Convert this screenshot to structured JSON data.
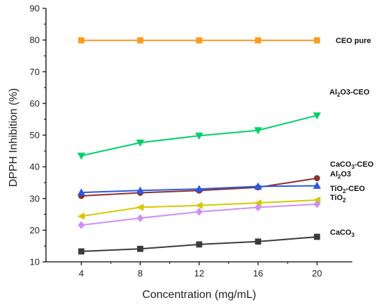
{
  "chart_data": {
    "type": "line",
    "xlabel": "Concentration (mg/mL)",
    "ylabel": "DPPH Inhibition (%)",
    "x": [
      4,
      8,
      12,
      16,
      20
    ],
    "xlim": [
      1.6,
      22.4
    ],
    "ylim": [
      10,
      90
    ],
    "yticks": [
      10,
      20,
      30,
      40,
      50,
      60,
      70,
      80,
      90
    ],
    "grid": false,
    "legend": "none",
    "series": [
      {
        "name": "CEO pure",
        "label_main": "CEO pure",
        "label_sub": "",
        "label_tail": "",
        "color": "#ff9a1f",
        "marker": "square",
        "values": [
          79.9,
          79.9,
          79.9,
          79.9,
          79.9
        ]
      },
      {
        "name": "Al2O3-CEO",
        "label_main": "Al",
        "label_sub": "2",
        "label_tail": "O3-CEO",
        "color": "#00d068",
        "marker": "triangle-down",
        "values": [
          43.5,
          47.6,
          49.8,
          51.5,
          56.2
        ]
      },
      {
        "name": "CaCO3-CEO",
        "label_main": "CaCO",
        "label_sub": "3",
        "label_tail": "-CEO",
        "color": "#8b2f2f",
        "marker": "circle",
        "values": [
          30.8,
          31.8,
          32.5,
          33.5,
          36.4
        ]
      },
      {
        "name": "Al2O3",
        "label_main": "Al",
        "label_sub": "2",
        "label_tail": "O3",
        "color": "#2d57e0",
        "marker": "triangle-up",
        "values": [
          31.9,
          32.5,
          33.0,
          33.8,
          34.0
        ]
      },
      {
        "name": "TiO2-CEO",
        "label_main": "TiO",
        "label_sub": "2",
        "label_tail": "-CEO",
        "color": "#d6c800",
        "marker": "triangle-left",
        "values": [
          24.4,
          27.2,
          27.8,
          28.6,
          29.5
        ]
      },
      {
        "name": "TiO2",
        "label_main": "TiO",
        "label_sub": "2",
        "label_tail": "",
        "color": "#cf8ef2",
        "marker": "diamond",
        "values": [
          21.6,
          23.8,
          25.8,
          27.2,
          28.2
        ]
      },
      {
        "name": "CaCO3",
        "label_main": "CaCO",
        "label_sub": "3",
        "label_tail": "",
        "color": "#3a3a3a",
        "marker": "square",
        "values": [
          13.3,
          14.1,
          15.5,
          16.4,
          17.9
        ]
      }
    ]
  }
}
